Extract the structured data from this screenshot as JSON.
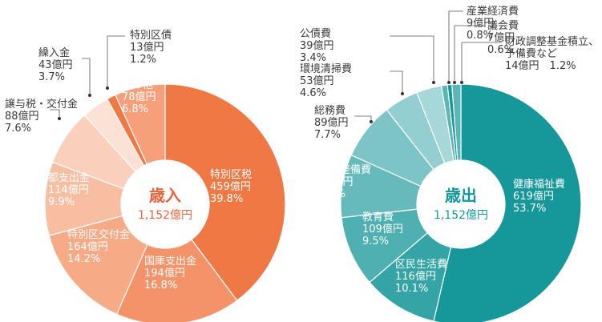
{
  "chart_data": [
    {
      "type": "pie",
      "title": "歳入",
      "total": "1,152億円",
      "slices": [
        {
          "name": "特別区税",
          "amount": "459億円",
          "percent": "39.8%",
          "value": 39.8,
          "color": "#f07844"
        },
        {
          "name": "国庫支出金",
          "amount": "194億円",
          "percent": "16.8%",
          "value": 16.8,
          "color": "#f4936a"
        },
        {
          "name": "特別区交付金",
          "amount": "164億円",
          "percent": "14.2%",
          "value": 14.2,
          "color": "#f6aa86"
        },
        {
          "name": "都支出金",
          "amount": "114億円",
          "percent": "9.9%",
          "value": 9.9,
          "color": "#f8bea2"
        },
        {
          "name": "譲与税・交付金",
          "amount": "88億円",
          "percent": "7.6%",
          "value": 7.6,
          "color": "#fad0bc"
        },
        {
          "name": "繰入金",
          "amount": "43億円",
          "percent": "3.7%",
          "value": 3.7,
          "color": "#fce2d5"
        },
        {
          "name": "特別区債",
          "amount": "13億円",
          "percent": "1.2%",
          "value": 1.2,
          "color": "#f07844"
        },
        {
          "name": "その他",
          "amount": "78億円",
          "percent": "6.8%",
          "value": 6.8,
          "color": "#f5a07a"
        }
      ]
    },
    {
      "type": "pie",
      "title": "歳出",
      "total": "1,152億円",
      "slices": [
        {
          "name": "健康福祉費",
          "amount": "619億円",
          "percent": "53.7%",
          "value": 53.7,
          "color": "#16979a"
        },
        {
          "name": "区民生活費",
          "amount": "116億円",
          "percent": "10.1%",
          "value": 10.1,
          "color": "#35a4a6"
        },
        {
          "name": "教育費",
          "amount": "109億円",
          "percent": "9.5%",
          "value": 9.5,
          "color": "#4fb0b2"
        },
        {
          "name": "都市整備費",
          "amount": "98億円",
          "percent": "8.5%",
          "value": 8.5,
          "color": "#66babc"
        },
        {
          "name": "総務費",
          "amount": "89億円",
          "percent": "7.7%",
          "value": 7.7,
          "color": "#7dc4c6"
        },
        {
          "name": "環境清掃費",
          "amount": "53億円",
          "percent": "4.6%",
          "value": 4.6,
          "color": "#93cfd0"
        },
        {
          "name": "公債費",
          "amount": "39億円",
          "percent": "3.4%",
          "value": 3.4,
          "color": "#a7d8d9"
        },
        {
          "name": "産業経済費",
          "amount": "9億円",
          "percent": "0.8%",
          "value": 0.8,
          "color": "#5cb5b7"
        },
        {
          "name": "議会費",
          "amount": "7億円",
          "percent": "0.6%",
          "value": 0.6,
          "color": "#16979a"
        },
        {
          "name": "財政調整基金積立、予備費など",
          "name_lines": [
            "財政調整基金積立、",
            "予備費など"
          ],
          "amount": "14億円",
          "percent": "1.2%",
          "value": 1.2,
          "color": "#5cb5b7"
        }
      ]
    }
  ]
}
